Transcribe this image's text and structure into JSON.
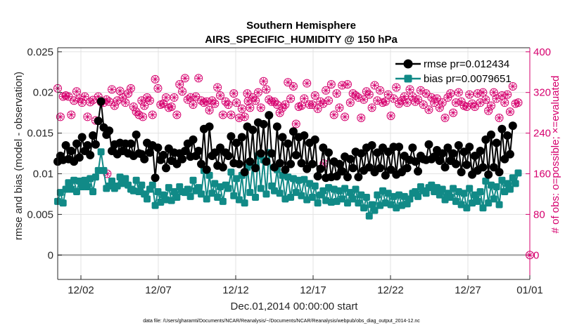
{
  "chart_data": {
    "type": "line",
    "title": "Southern Hemisphere",
    "subtitle": "AIRS_SPECIFIC_HUMIDITY @ 150 hPa",
    "xlabel": "Dec.01,2014 00:00:00 start",
    "ylabel_left": "rmse and bias (model - observation)",
    "ylabel_right": "# of obs: o=possible; ×=evaluated",
    "footnote": "data file: /Users/gharamti/Documents/NCAR/Reanalysis/~/Documents/NCAR/Reanalysis/webpub/obs_diag_output_2014-12.nc",
    "xlim": [
      0.5,
      31.0
    ],
    "ylim_left": [
      -0.003,
      0.0255
    ],
    "ylim_right": [
      -48,
      408
    ],
    "x_ticks": [
      2,
      7,
      12,
      17,
      22,
      27,
      32
    ],
    "x_tick_labels": [
      "12/02",
      "12/07",
      "12/12",
      "12/17",
      "12/22",
      "12/27",
      "01/01"
    ],
    "y_ticks_left": [
      0,
      0.005,
      0.01,
      0.015,
      0.02,
      0.025
    ],
    "y_tick_labels_left": [
      "0",
      "0.005",
      "0.01",
      "0.015",
      "0.02",
      "0.025"
    ],
    "y_ticks_right": [
      0,
      80,
      160,
      240,
      320,
      400
    ],
    "y_tick_labels_right": [
      "0",
      "80",
      "160",
      "240",
      "320",
      "400"
    ],
    "grid": true,
    "legend": {
      "position": "top-right",
      "entries": [
        "rmse pr=0.012434",
        "bias pr=0.0079651"
      ]
    },
    "colors": {
      "rmse": "#000000",
      "bias": "#118a87",
      "obs": "#d6006e",
      "zero_line": "#a0a0a0"
    },
    "series": [
      {
        "name": "rmse",
        "label": "rmse pr=0.012434",
        "values": [
          0.0115,
          0.0122,
          0.0117,
          0.0135,
          0.0118,
          0.0128,
          0.0115,
          0.0137,
          0.012,
          0.0145,
          0.0128,
          0.0135,
          0.0123,
          0.0147,
          0.0136,
          0.0165,
          0.0189,
          0.0157,
          0.0148,
          0.0153,
          0.0128,
          0.0136,
          0.0124,
          0.0138,
          0.0128,
          0.0137,
          0.0125,
          0.0137,
          0.0122,
          0.0148,
          0.0125,
          0.0124,
          0.0118,
          0.0138,
          0.0126,
          0.0135,
          0.0095,
          0.0132,
          0.0117,
          0.0123,
          0.0107,
          0.0131,
          0.0116,
          0.0126,
          0.0112,
          0.0125,
          0.0118,
          0.0128,
          0.0137,
          0.0121,
          0.0142,
          0.0122,
          0.0128,
          0.0112,
          0.0155,
          0.0105,
          0.0158,
          0.0122,
          0.0126,
          0.011,
          0.0132,
          0.0108,
          0.0126,
          0.0122,
          0.0146,
          0.0113,
          0.0138,
          0.0112,
          0.0145,
          0.0102,
          0.0158,
          0.0115,
          0.0154,
          0.0107,
          0.0163,
          0.0125,
          0.0161,
          0.0115,
          0.0172,
          0.0125,
          0.0108,
          0.0158,
          0.0113,
          0.0145,
          0.0105,
          0.0137,
          0.0112,
          0.0152,
          0.0123,
          0.0145,
          0.0113,
          0.0147,
          0.0106,
          0.0138,
          0.0112,
          0.0142,
          0.0097,
          0.0106,
          0.0132,
          0.0095,
          0.0126,
          0.0096,
          0.0115,
          0.0097,
          0.0112,
          0.0103,
          0.0121,
          0.0096,
          0.0118,
          0.0107,
          0.0127,
          0.0096,
          0.0125,
          0.0104,
          0.0132,
          0.0108,
          0.0135,
          0.0102,
          0.0126,
          0.0107,
          0.0132,
          0.0098,
          0.0127,
          0.0105,
          0.0133,
          0.0099,
          0.0133,
          0.0102,
          0.0122,
          0.0107,
          0.0117,
          0.0132,
          0.0115,
          0.0103,
          0.0122,
          0.0118,
          0.0117,
          0.0136,
          0.0118,
          0.0121,
          0.0129,
          0.0116,
          0.0125,
          0.0108,
          0.0132,
          0.0116,
          0.0125,
          0.0112,
          0.0135,
          0.0102,
          0.0127,
          0.0111,
          0.0133,
          0.0099,
          0.0122,
          0.0104,
          0.0128,
          0.0108,
          0.0142,
          0.0099,
          0.0148,
          0.0108,
          0.0138,
          0.0102,
          0.0155,
          0.0118,
          0.0147,
          0.0124,
          0.0159
        ],
        "x_start": 0.5,
        "x_step": 0.175
      },
      {
        "name": "bias",
        "label": "bias pr=0.0079651",
        "values": [
          0.0066,
          0.0077,
          0.0064,
          0.0081,
          0.0089,
          0.0081,
          0.0092,
          0.0078,
          0.0091,
          0.0084,
          0.0092,
          0.0084,
          0.0094,
          0.0078,
          0.0096,
          0.0104,
          0.0127,
          0.0104,
          0.0082,
          0.0085,
          0.0091,
          0.0082,
          0.0085,
          0.0096,
          0.0088,
          0.0094,
          0.0086,
          0.0081,
          0.0079,
          0.0092,
          0.0078,
          0.0086,
          0.0075,
          0.0069,
          0.0081,
          0.0086,
          0.0061,
          0.0078,
          0.0065,
          0.0074,
          0.0068,
          0.0083,
          0.0067,
          0.0078,
          0.0071,
          0.0084,
          0.0078,
          0.0077,
          0.0081,
          0.0072,
          0.0092,
          0.0079,
          0.0083,
          0.0075,
          0.0104,
          0.0069,
          0.0098,
          0.0076,
          0.0088,
          0.0071,
          0.0084,
          0.0066,
          0.0086,
          0.0082,
          0.0102,
          0.0073,
          0.0094,
          0.0068,
          0.0098,
          0.0064,
          0.0108,
          0.0077,
          0.0111,
          0.0071,
          0.0122,
          0.0082,
          0.0117,
          0.0075,
          0.0126,
          0.0085,
          0.0079,
          0.0105,
          0.0076,
          0.0098,
          0.0069,
          0.0096,
          0.0071,
          0.0094,
          0.0077,
          0.0092,
          0.0073,
          0.0093,
          0.0068,
          0.0088,
          0.0071,
          0.0085,
          0.0064,
          0.0074,
          0.0079,
          0.0067,
          0.0083,
          0.0065,
          0.0081,
          0.0066,
          0.0079,
          0.0069,
          0.0082,
          0.0064,
          0.0077,
          0.0069,
          0.0081,
          0.0064,
          0.0074,
          0.0058,
          0.0071,
          0.0048,
          0.0062,
          0.0055,
          0.0074,
          0.0061,
          0.0079,
          0.0064,
          0.0076,
          0.0062,
          0.0072,
          0.0058,
          0.0074,
          0.0061,
          0.0072,
          0.0063,
          0.0069,
          0.0076,
          0.0078,
          0.0072,
          0.0084,
          0.0079,
          0.0076,
          0.0083,
          0.0086,
          0.0078,
          0.0083,
          0.0074,
          0.0081,
          0.0068,
          0.0076,
          0.0071,
          0.0082,
          0.0066,
          0.0078,
          0.0062,
          0.0076,
          0.0058,
          0.0082,
          0.0064,
          0.0074,
          0.0066,
          0.0078,
          0.0058,
          0.0091,
          0.0064,
          0.0086,
          0.0069,
          0.0084,
          0.0062,
          0.0092,
          0.0078,
          0.0088,
          0.0081,
          0.0095,
          0.0088,
          0.0101
        ],
        "x_start": 0.5,
        "x_step": 0.175
      },
      {
        "name": "obs_possible",
        "label": "# of obs possible",
        "values": [
          328,
          272,
          312,
          314,
          312,
          276,
          304,
          322,
          308,
          300,
          312,
          272,
          301,
          305,
          265,
          312,
          301,
          300,
          306,
          302,
          326,
          294,
          304,
          323,
          310,
          300,
          318,
          328,
          292,
          282,
          276,
          304,
          294,
          310,
          304,
          276,
          346,
          328,
          296,
          298,
          310,
          290,
          292,
          310,
          276,
          336,
          322,
          348,
          306,
          310,
          296,
          312,
          348,
          304,
          300,
          302,
          285,
          304,
          298,
          330,
          314,
          276,
          302,
          296,
          276,
          318,
          300,
          270,
          288,
          272,
          318,
          290,
          310,
          304,
          320,
          290,
          342,
          326,
          306,
          302,
          302,
          296,
          280,
          290,
          296,
          340,
          308,
          332,
          258,
          292,
          294,
          308,
          338,
          296,
          296,
          314,
          288,
          302,
          298,
          324,
          304,
          336,
          276,
          318,
          290,
          334,
          272,
          336,
          300,
          318,
          314,
          310,
          270,
          306,
          322,
          316,
          290,
          334,
          304,
          324,
          300,
          302,
          316,
          274,
          308,
          330,
          298,
          304,
          312,
          300,
          326,
          312,
          302,
          306,
          324,
          296,
          318,
          286,
          310,
          300,
          308,
          290,
          300,
          270,
          310,
          318,
          280,
          300,
          320,
          302,
          294,
          292,
          316,
          298,
          292,
          318,
          300,
          320,
          306,
          284,
          294,
          320,
          308,
          270,
          314,
          300,
          316,
          282,
          332,
          298,
          300
        ],
        "x_start": 0.5,
        "x_step": 0.175
      },
      {
        "name": "obs_evaluated_marks",
        "label": "# of obs evaluated (extra marks)",
        "points": [
          [
            3.7,
            160
          ],
          [
            6.0,
            272
          ],
          [
            17.7,
            180
          ],
          [
            12.8,
            303
          ]
        ]
      }
    ],
    "extra_right_point": {
      "x": 31.0,
      "value": 0
    }
  }
}
